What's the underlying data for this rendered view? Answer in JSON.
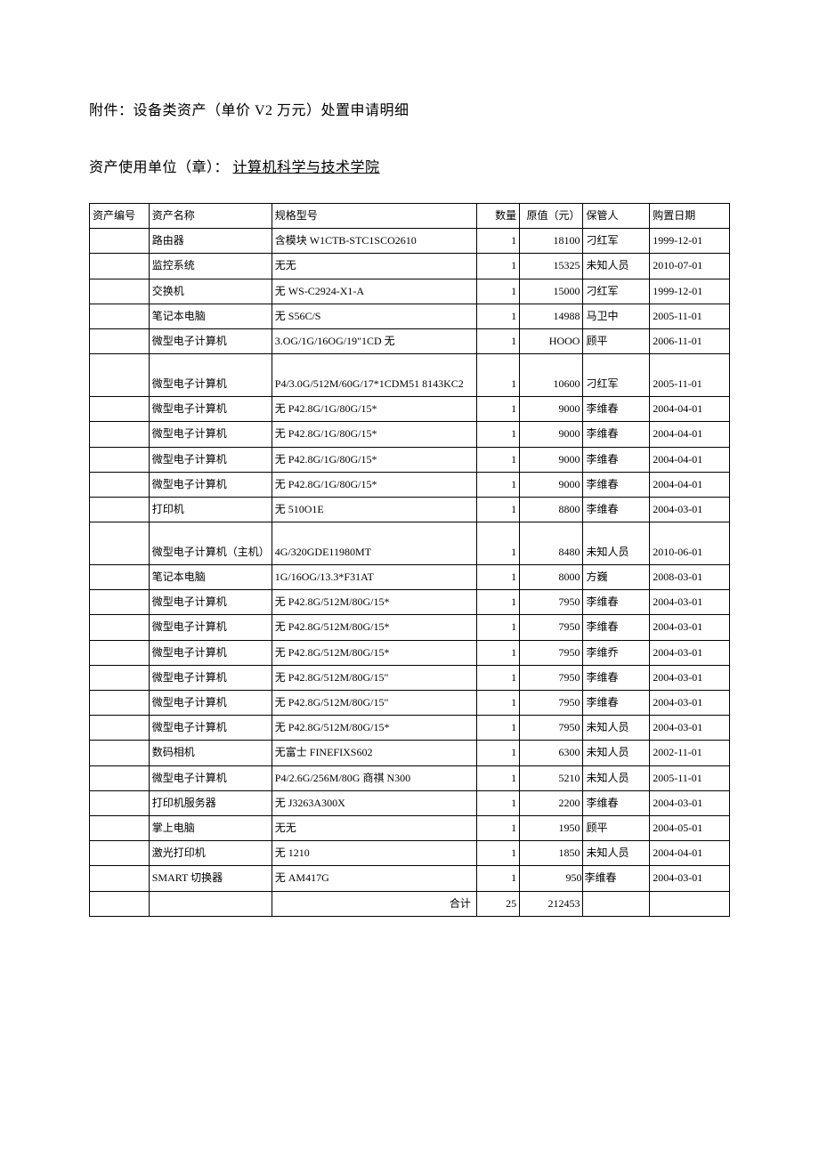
{
  "title": "附件：设备类资产（单价 V2 万元）处置申请明细",
  "org_label": "资产使用单位（章）：",
  "org_name": "计算机科学与技术学院",
  "columns": {
    "id": "资产编号",
    "name": "资产名称",
    "spec": "规格型号",
    "qty": "数量",
    "val": "原值（元）",
    "keeper": "保管人",
    "date": "购置日期"
  },
  "rows": [
    {
      "id": "",
      "name": "路由器",
      "spec": "含模块 W1CTB-STC1SCO2610",
      "qty": "1",
      "val": "18100",
      "keeper": "刁红军",
      "date": "1999-12-01",
      "tall": false
    },
    {
      "id": "",
      "name": "监控系统",
      "spec": "无无",
      "qty": "1",
      "val": "15325",
      "keeper": "未知人员",
      "date": "2010-07-01",
      "tall": false
    },
    {
      "id": "",
      "name": "交换机",
      "spec": "无 WS-C2924-X1-A",
      "qty": "1",
      "val": "15000",
      "keeper": "刁红军",
      "date": "1999-12-01",
      "tall": false
    },
    {
      "id": "",
      "name": "笔记本电脑",
      "spec": "无 S56C/S",
      "qty": "1",
      "val": "14988",
      "keeper": "马卫中",
      "date": "2005-11-01",
      "tall": false
    },
    {
      "id": "",
      "name": "微型电子计算机",
      "spec": "3.OG/1G/16OG/19\"1CD 无",
      "qty": "1",
      "val": "HOOO",
      "keeper": "顾平",
      "date": "2006-11-01",
      "tall": false
    },
    {
      "id": "",
      "name": "微型电子计算机",
      "spec": "P4/3.0G/512M/60G/17*1CDM51 8143KC2",
      "qty": "1",
      "val": "10600",
      "keeper": "刁红军",
      "date": "2005-11-01",
      "tall": true
    },
    {
      "id": "",
      "name": "微型电子计算机",
      "spec": "无 P42.8G/1G/80G/15*",
      "qty": "1",
      "val": "9000",
      "keeper": "李维春",
      "date": "2004-04-01",
      "tall": false
    },
    {
      "id": "",
      "name": "微型电子计算机",
      "spec": "无 P42.8G/1G/80G/15*",
      "qty": "1",
      "val": "9000",
      "keeper": "李维春",
      "date": "2004-04-01",
      "tall": false
    },
    {
      "id": "",
      "name": "微型电子计算机",
      "spec": "无 P42.8G/1G/80G/15*",
      "qty": "1",
      "val": "9000",
      "keeper": "李维春",
      "date": "2004-04-01",
      "tall": false
    },
    {
      "id": "",
      "name": "微型电子计算机",
      "spec": "无 P42.8G/1G/80G/15*",
      "qty": "1",
      "val": "9000",
      "keeper": "李维春",
      "date": "2004-04-01",
      "tall": false
    },
    {
      "id": "",
      "name": "打印机",
      "spec": "无 510O1E",
      "qty": "1",
      "val": "8800",
      "keeper": "李维春",
      "date": "2004-03-01",
      "tall": false
    },
    {
      "id": "",
      "name": "微型电子计算机（主机）",
      "spec": "4G/320GDE11980MT",
      "qty": "1",
      "val": "8480",
      "keeper": "未知人员",
      "date": "2010-06-01",
      "tall": true
    },
    {
      "id": "",
      "name": "笔记本电脑",
      "spec": "1G/16OG/13.3*F31AT",
      "qty": "1",
      "val": "8000",
      "keeper": "方巍",
      "date": "2008-03-01",
      "tall": false
    },
    {
      "id": "",
      "name": "微型电子计算机",
      "spec": "无 P42.8G/512M/80G/15*",
      "qty": "1",
      "val": "7950",
      "keeper": "李维春",
      "date": "2004-03-01",
      "tall": false
    },
    {
      "id": "",
      "name": "微型电子计算机",
      "spec": "无 P42.8G/512M/80G/15*",
      "qty": "1",
      "val": "7950",
      "keeper": "李维春",
      "date": "2004-03-01",
      "tall": false
    },
    {
      "id": "",
      "name": "微型电子计算机",
      "spec": "无 P42.8G/512M/80G/15*",
      "qty": "1",
      "val": "7950",
      "keeper": "李维乔",
      "date": "2004-03-01",
      "tall": false
    },
    {
      "id": "",
      "name": "微型电子计算机",
      "spec": "无 P42.8G/512M/80G/15\"",
      "qty": "1",
      "val": "7950",
      "keeper": "李维春",
      "date": "2004-03-01",
      "tall": false
    },
    {
      "id": "",
      "name": "微型电子计算机",
      "spec": "无 P42.8G/512M/80G/15\"",
      "qty": "1",
      "val": "7950",
      "keeper": "李维春",
      "date": "2004-03-01",
      "tall": false
    },
    {
      "id": "",
      "name": "微型电子计算机",
      "spec": "无 P42.8G/512M/80G/15*",
      "qty": "1",
      "val": "7950",
      "keeper": "未知人员",
      "date": "2004-03-01",
      "tall": false
    },
    {
      "id": "",
      "name": "数码相机",
      "spec": "无富士 FINEFIXS602",
      "qty": "1",
      "val": "6300",
      "keeper": "未知人员",
      "date": "2002-11-01",
      "tall": false
    },
    {
      "id": "",
      "name": "微型电子计算机",
      "spec": "P4/2.6G/256M/80G 商祺 N300",
      "qty": "1",
      "val": "5210",
      "keeper": "未知人员",
      "date": "2005-11-01",
      "tall": false
    },
    {
      "id": "",
      "name": "打印机服务器",
      "spec": "无 J3263A300X",
      "qty": "1",
      "val": "2200",
      "keeper": "李维春",
      "date": "2004-03-01",
      "tall": false
    },
    {
      "id": "",
      "name": "掌上电脑",
      "spec": "无无",
      "qty": "1",
      "val": "1950",
      "keeper": "顾平",
      "date": "2004-05-01",
      "tall": false
    },
    {
      "id": "",
      "name": "激光打印机",
      "spec": "无 1210",
      "qty": "1",
      "val": "1850",
      "keeper": "未知人员",
      "date": "2004-04-01",
      "tall": false
    },
    {
      "id": "",
      "name": "SMART 切换器",
      "spec": "无 AM417G",
      "qty": "1",
      "val": "950",
      "keeper": "李维春",
      "date": "2004-03-01",
      "tall": false,
      "nogap": true
    }
  ],
  "totals": {
    "label": "合计",
    "qty": "25",
    "val": "212453"
  }
}
